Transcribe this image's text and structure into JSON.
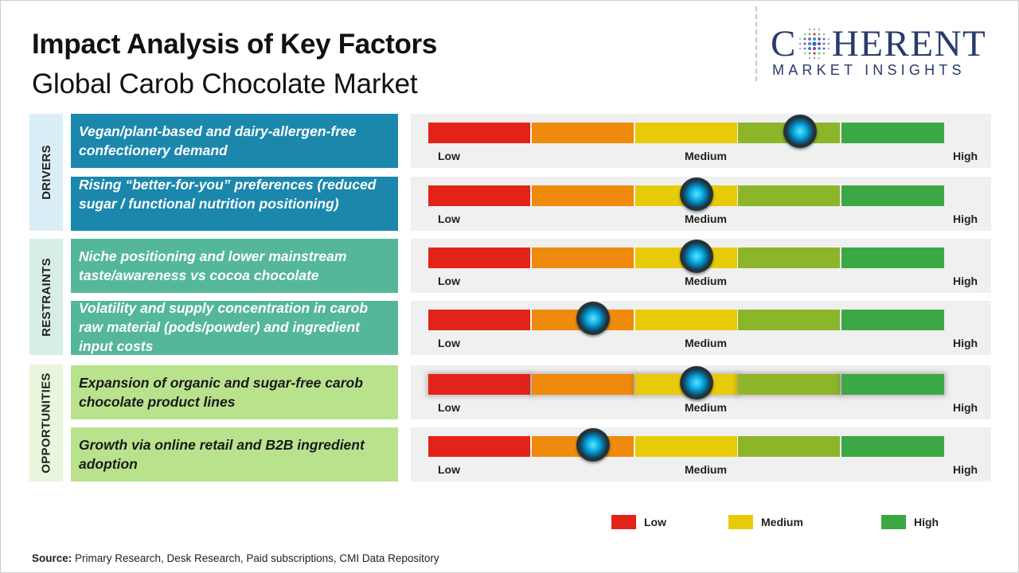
{
  "title": "Impact Analysis of Key Factors",
  "subtitle": "Global Carob Chocolate Market",
  "logo": {
    "name_before": "C",
    "name_after": "HERENT",
    "tagline": "MARKET INSIGHTS"
  },
  "categories": {
    "drivers": "DRIVERS",
    "restraints": "RESTRAINTS",
    "opportunities": "OPPORTUNITIES"
  },
  "gauge_labels": {
    "low": "Low",
    "medium": "Medium",
    "high": "High"
  },
  "factors": [
    {
      "category": "drivers",
      "label": "Vegan/plant-based and dairy-allergen-free confectionery demand",
      "impact_level": 3.6
    },
    {
      "category": "drivers",
      "label": "Rising “better-for-you” preferences (reduced sugar / functional nutrition positioning)",
      "impact_level": 2.6
    },
    {
      "category": "restraints",
      "label": "Niche positioning and lower mainstream taste/awareness vs cocoa chocolate",
      "impact_level": 2.6
    },
    {
      "category": "restraints",
      "label": "Volatility and supply concentration in carob raw material (pods/powder) and ingredient input costs",
      "impact_level": 1.6
    },
    {
      "category": "opportunities",
      "label": "Expansion of organic and sugar-free carob chocolate product lines",
      "impact_level": 2.6
    },
    {
      "category": "opportunities",
      "label": "Growth via online retail and B2B ingredient adoption",
      "impact_level": 1.6
    }
  ],
  "scale": {
    "min": 0,
    "max": 5,
    "segment_colors": [
      "#e2231a",
      "#f08a0c",
      "#e8cb08",
      "#8db52a",
      "#3ca845"
    ]
  },
  "legend": [
    {
      "label": "Low",
      "color": "#e2231a"
    },
    {
      "label": "Medium",
      "color": "#e8cb08"
    },
    {
      "label": "High",
      "color": "#3ca845"
    }
  ],
  "source": {
    "prefix": "Source:",
    "text": " Primary Research, Desk Research, Paid subscriptions, CMI Data Repository"
  }
}
